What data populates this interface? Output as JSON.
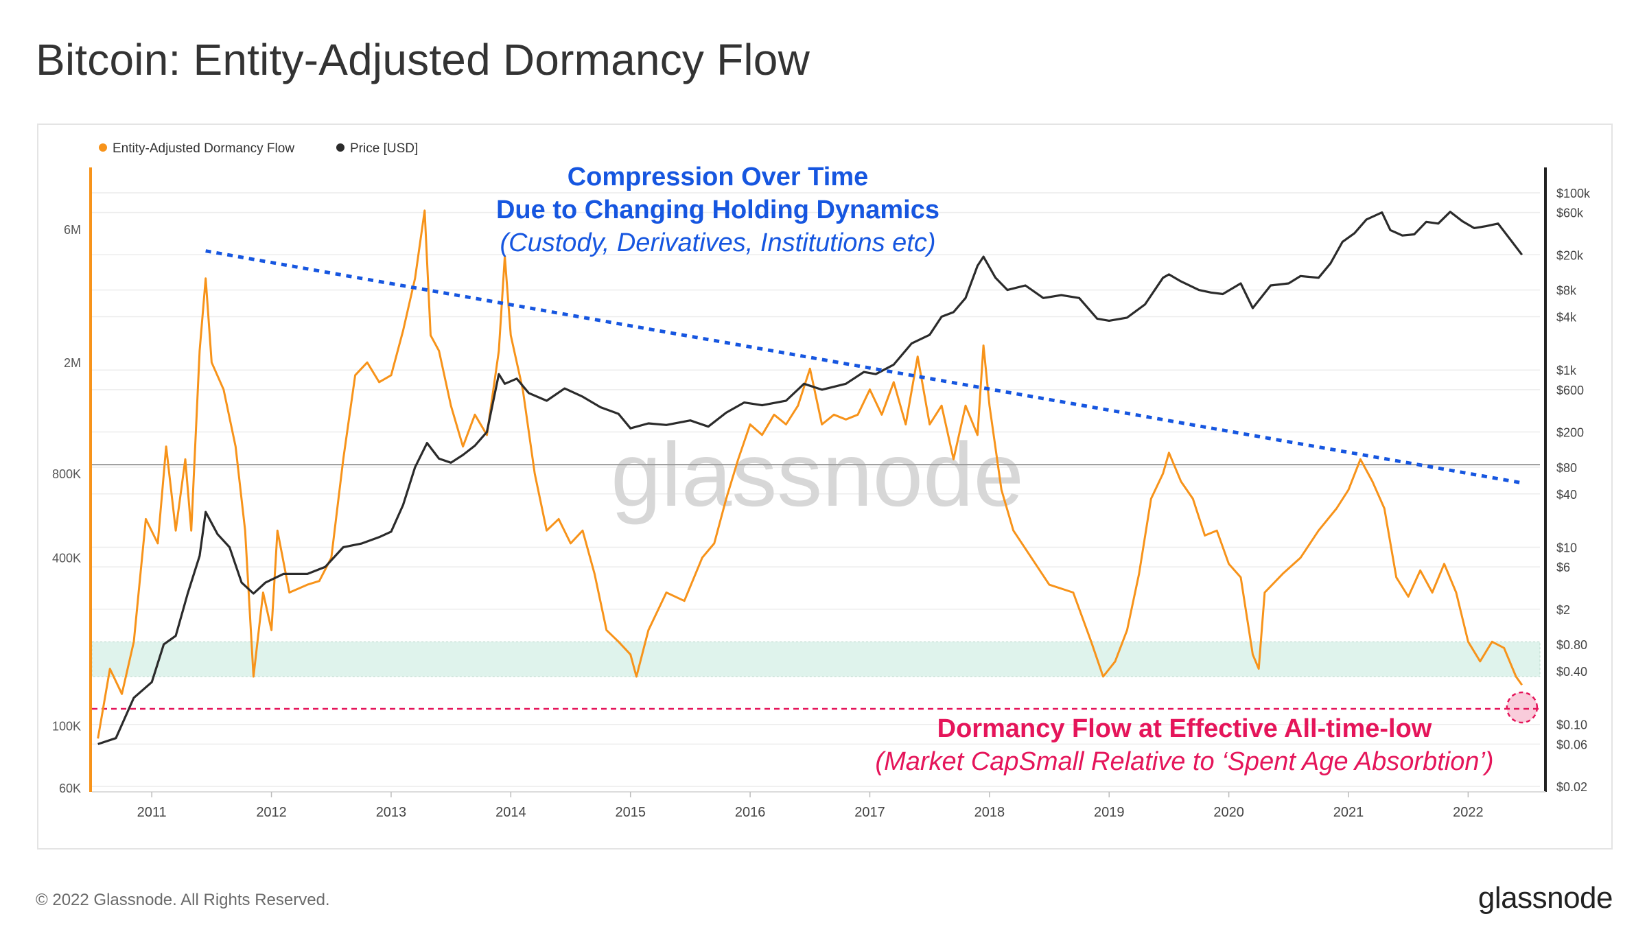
{
  "title": "Bitcoin: Entity-Adjusted Dormancy Flow",
  "footer": {
    "copyright": "© 2022 Glassnode. All Rights Reserved.",
    "brand": "glassnode"
  },
  "watermark": "glassnode",
  "colors": {
    "dormancy": "#f7931a",
    "price": "#2b2b2b",
    "trendline": "#1656e0",
    "atl": "#e5155a",
    "band": "#dff3ec"
  },
  "chart_data": {
    "type": "line",
    "legend": {
      "placement": "top-left",
      "items": [
        {
          "label": "Entity-Adjusted Dormancy Flow",
          "color": "#f7931a"
        },
        {
          "label": "Price [USD]",
          "color": "#2b2b2b"
        }
      ]
    },
    "x_ticks": [
      "2011",
      "2012",
      "2013",
      "2014",
      "2015",
      "2016",
      "2017",
      "2018",
      "2019",
      "2020",
      "2021",
      "2022"
    ],
    "y_left": {
      "scale": "log",
      "ticks": [
        {
          "label": "6M",
          "value": 6000000
        },
        {
          "label": "2M",
          "value": 2000000
        },
        {
          "label": "800K",
          "value": 800000
        },
        {
          "label": "400K",
          "value": 400000
        },
        {
          "label": "100K",
          "value": 100000
        },
        {
          "label": "60K",
          "value": 60000
        }
      ]
    },
    "y_right": {
      "scale": "log",
      "ticks": [
        {
          "label": "$100k",
          "value": 100000
        },
        {
          "label": "$60k",
          "value": 60000
        },
        {
          "label": "$20k",
          "value": 20000
        },
        {
          "label": "$8k",
          "value": 8000
        },
        {
          "label": "$4k",
          "value": 4000
        },
        {
          "label": "$1k",
          "value": 1000
        },
        {
          "label": "$600",
          "value": 600
        },
        {
          "label": "$200",
          "value": 200
        },
        {
          "label": "$80",
          "value": 80
        },
        {
          "label": "$40",
          "value": 40
        },
        {
          "label": "$10",
          "value": 10
        },
        {
          "label": "$6",
          "value": 6
        },
        {
          "label": "$2",
          "value": 2
        },
        {
          "label": "$0.80",
          "value": 0.8
        },
        {
          "label": "$0.40",
          "value": 0.4
        },
        {
          "label": "$0.10",
          "value": 0.1
        },
        {
          "label": "$0.06",
          "value": 0.06
        },
        {
          "label": "$0.02",
          "value": 0.02
        }
      ]
    },
    "series": [
      {
        "name": "Entity-Adjusted Dormancy Flow",
        "axis": "left",
        "points": [
          [
            2010.55,
            90000
          ],
          [
            2010.65,
            160000
          ],
          [
            2010.75,
            130000
          ],
          [
            2010.85,
            200000
          ],
          [
            2010.95,
            550000
          ],
          [
            2011.05,
            450000
          ],
          [
            2011.12,
            1000000
          ],
          [
            2011.2,
            500000
          ],
          [
            2011.28,
            900000
          ],
          [
            2011.33,
            500000
          ],
          [
            2011.4,
            2200000
          ],
          [
            2011.45,
            4000000
          ],
          [
            2011.5,
            2000000
          ],
          [
            2011.6,
            1600000
          ],
          [
            2011.7,
            1000000
          ],
          [
            2011.78,
            500000
          ],
          [
            2011.85,
            150000
          ],
          [
            2011.93,
            300000
          ],
          [
            2012.0,
            220000
          ],
          [
            2012.05,
            500000
          ],
          [
            2012.15,
            300000
          ],
          [
            2012.3,
            320000
          ],
          [
            2012.4,
            330000
          ],
          [
            2012.5,
            400000
          ],
          [
            2012.6,
            900000
          ],
          [
            2012.7,
            1800000
          ],
          [
            2012.8,
            2000000
          ],
          [
            2012.9,
            1700000
          ],
          [
            2013.0,
            1800000
          ],
          [
            2013.1,
            2600000
          ],
          [
            2013.2,
            4000000
          ],
          [
            2013.28,
            7000000
          ],
          [
            2013.33,
            2500000
          ],
          [
            2013.4,
            2200000
          ],
          [
            2013.5,
            1400000
          ],
          [
            2013.6,
            1000000
          ],
          [
            2013.7,
            1300000
          ],
          [
            2013.8,
            1100000
          ],
          [
            2013.9,
            2200000
          ],
          [
            2013.95,
            4800000
          ],
          [
            2014.0,
            2500000
          ],
          [
            2014.1,
            1600000
          ],
          [
            2014.2,
            800000
          ],
          [
            2014.3,
            500000
          ],
          [
            2014.4,
            550000
          ],
          [
            2014.5,
            450000
          ],
          [
            2014.6,
            500000
          ],
          [
            2014.7,
            350000
          ],
          [
            2014.8,
            220000
          ],
          [
            2014.9,
            200000
          ],
          [
            2015.0,
            180000
          ],
          [
            2015.05,
            150000
          ],
          [
            2015.15,
            220000
          ],
          [
            2015.3,
            300000
          ],
          [
            2015.45,
            280000
          ],
          [
            2015.6,
            400000
          ],
          [
            2015.7,
            450000
          ],
          [
            2015.8,
            650000
          ],
          [
            2015.9,
            900000
          ],
          [
            2016.0,
            1200000
          ],
          [
            2016.1,
            1100000
          ],
          [
            2016.2,
            1300000
          ],
          [
            2016.3,
            1200000
          ],
          [
            2016.4,
            1400000
          ],
          [
            2016.5,
            1900000
          ],
          [
            2016.6,
            1200000
          ],
          [
            2016.7,
            1300000
          ],
          [
            2016.8,
            1250000
          ],
          [
            2016.9,
            1300000
          ],
          [
            2017.0,
            1600000
          ],
          [
            2017.1,
            1300000
          ],
          [
            2017.2,
            1700000
          ],
          [
            2017.3,
            1200000
          ],
          [
            2017.4,
            2100000
          ],
          [
            2017.5,
            1200000
          ],
          [
            2017.6,
            1400000
          ],
          [
            2017.7,
            900000
          ],
          [
            2017.8,
            1400000
          ],
          [
            2017.9,
            1100000
          ],
          [
            2017.95,
            2300000
          ],
          [
            2018.0,
            1400000
          ],
          [
            2018.1,
            700000
          ],
          [
            2018.2,
            500000
          ],
          [
            2018.35,
            400000
          ],
          [
            2018.5,
            320000
          ],
          [
            2018.7,
            300000
          ],
          [
            2018.85,
            200000
          ],
          [
            2018.95,
            150000
          ],
          [
            2019.05,
            170000
          ],
          [
            2019.15,
            220000
          ],
          [
            2019.25,
            350000
          ],
          [
            2019.35,
            650000
          ],
          [
            2019.45,
            800000
          ],
          [
            2019.5,
            950000
          ],
          [
            2019.6,
            750000
          ],
          [
            2019.7,
            650000
          ],
          [
            2019.8,
            480000
          ],
          [
            2019.9,
            500000
          ],
          [
            2020.0,
            380000
          ],
          [
            2020.1,
            340000
          ],
          [
            2020.2,
            180000
          ],
          [
            2020.25,
            160000
          ],
          [
            2020.3,
            300000
          ],
          [
            2020.45,
            350000
          ],
          [
            2020.6,
            400000
          ],
          [
            2020.75,
            500000
          ],
          [
            2020.9,
            600000
          ],
          [
            2021.0,
            700000
          ],
          [
            2021.1,
            900000
          ],
          [
            2021.2,
            750000
          ],
          [
            2021.3,
            600000
          ],
          [
            2021.4,
            340000
          ],
          [
            2021.5,
            290000
          ],
          [
            2021.6,
            360000
          ],
          [
            2021.7,
            300000
          ],
          [
            2021.8,
            380000
          ],
          [
            2021.9,
            300000
          ],
          [
            2022.0,
            200000
          ],
          [
            2022.1,
            170000
          ],
          [
            2022.2,
            200000
          ],
          [
            2022.3,
            190000
          ],
          [
            2022.4,
            150000
          ],
          [
            2022.45,
            140000
          ]
        ]
      },
      {
        "name": "Price [USD]",
        "axis": "right",
        "points": [
          [
            2010.55,
            0.06
          ],
          [
            2010.7,
            0.07
          ],
          [
            2010.85,
            0.2
          ],
          [
            2011.0,
            0.3
          ],
          [
            2011.1,
            0.8
          ],
          [
            2011.2,
            1
          ],
          [
            2011.3,
            3
          ],
          [
            2011.4,
            8
          ],
          [
            2011.45,
            25
          ],
          [
            2011.55,
            14
          ],
          [
            2011.65,
            10
          ],
          [
            2011.75,
            4
          ],
          [
            2011.85,
            3
          ],
          [
            2011.95,
            4
          ],
          [
            2012.1,
            5
          ],
          [
            2012.3,
            5
          ],
          [
            2012.45,
            6
          ],
          [
            2012.6,
            10
          ],
          [
            2012.75,
            11
          ],
          [
            2012.9,
            13
          ],
          [
            2013.0,
            15
          ],
          [
            2013.1,
            30
          ],
          [
            2013.2,
            80
          ],
          [
            2013.3,
            150
          ],
          [
            2013.4,
            100
          ],
          [
            2013.5,
            90
          ],
          [
            2013.6,
            110
          ],
          [
            2013.7,
            140
          ],
          [
            2013.8,
            200
          ],
          [
            2013.9,
            900
          ],
          [
            2013.95,
            700
          ],
          [
            2014.05,
            800
          ],
          [
            2014.15,
            550
          ],
          [
            2014.3,
            450
          ],
          [
            2014.45,
            620
          ],
          [
            2014.6,
            500
          ],
          [
            2014.75,
            380
          ],
          [
            2014.9,
            320
          ],
          [
            2015.0,
            220
          ],
          [
            2015.15,
            250
          ],
          [
            2015.3,
            240
          ],
          [
            2015.5,
            270
          ],
          [
            2015.65,
            230
          ],
          [
            2015.8,
            330
          ],
          [
            2015.95,
            430
          ],
          [
            2016.1,
            400
          ],
          [
            2016.3,
            450
          ],
          [
            2016.45,
            700
          ],
          [
            2016.6,
            600
          ],
          [
            2016.8,
            700
          ],
          [
            2016.95,
            950
          ],
          [
            2017.05,
            900
          ],
          [
            2017.2,
            1150
          ],
          [
            2017.35,
            2000
          ],
          [
            2017.5,
            2500
          ],
          [
            2017.6,
            4000
          ],
          [
            2017.7,
            4500
          ],
          [
            2017.8,
            6500
          ],
          [
            2017.9,
            15000
          ],
          [
            2017.95,
            19000
          ],
          [
            2018.05,
            11000
          ],
          [
            2018.15,
            8000
          ],
          [
            2018.3,
            9000
          ],
          [
            2018.45,
            6500
          ],
          [
            2018.6,
            7000
          ],
          [
            2018.75,
            6500
          ],
          [
            2018.9,
            3800
          ],
          [
            2019.0,
            3600
          ],
          [
            2019.15,
            3900
          ],
          [
            2019.3,
            5500
          ],
          [
            2019.45,
            11000
          ],
          [
            2019.5,
            12000
          ],
          [
            2019.6,
            10000
          ],
          [
            2019.75,
            8000
          ],
          [
            2019.85,
            7500
          ],
          [
            2019.95,
            7200
          ],
          [
            2020.1,
            9500
          ],
          [
            2020.2,
            5000
          ],
          [
            2020.35,
            9000
          ],
          [
            2020.5,
            9500
          ],
          [
            2020.6,
            11500
          ],
          [
            2020.75,
            11000
          ],
          [
            2020.85,
            16000
          ],
          [
            2020.95,
            28000
          ],
          [
            2021.05,
            35000
          ],
          [
            2021.15,
            50000
          ],
          [
            2021.28,
            60000
          ],
          [
            2021.35,
            38000
          ],
          [
            2021.45,
            33000
          ],
          [
            2021.55,
            34000
          ],
          [
            2021.65,
            47000
          ],
          [
            2021.75,
            45000
          ],
          [
            2021.85,
            61000
          ],
          [
            2021.95,
            48000
          ],
          [
            2022.05,
            40000
          ],
          [
            2022.15,
            42000
          ],
          [
            2022.25,
            45000
          ],
          [
            2022.35,
            30000
          ],
          [
            2022.45,
            20000
          ]
        ]
      }
    ],
    "annotations": {
      "trend_title_1": "Compression Over Time",
      "trend_title_2": "Due to Changing Holding Dynamics",
      "trend_subtitle": "(Custody, Derivatives, Institutions etc)",
      "atl_title": "Dormancy Flow at Effective All-time-low",
      "atl_subtitle": "(Market CapSmall Relative to ‘Spent Age Absorbtion’)",
      "trendline": {
        "from": [
          2011.45,
          4000000
        ],
        "to": [
          2022.45,
          700000
        ]
      },
      "band": {
        "from": 150000,
        "to": 200000
      },
      "atl_level": 115000,
      "reference_level": 800000
    }
  }
}
